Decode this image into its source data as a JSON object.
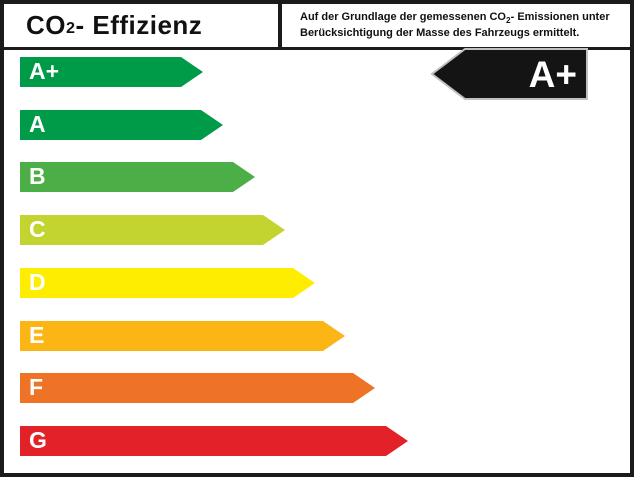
{
  "header": {
    "title": {
      "prefix": "CO",
      "sub": "2",
      "suffix": " - Effizienz"
    },
    "note": {
      "line1": {
        "prefix": "Auf der Grundlage der gemessenen CO",
        "sub": "2",
        "suffix": "- Emissionen unter"
      },
      "line2": "Berücksichtigung der Masse des Fahrzeugs ermittelt."
    }
  },
  "chart_data": {
    "type": "bar",
    "title": "CO2 - Effizienz",
    "orientation": "horizontal-arrows",
    "categories": [
      "A+",
      "A",
      "B",
      "C",
      "D",
      "E",
      "F",
      "G"
    ],
    "values": [
      161,
      181,
      213,
      243,
      273,
      303,
      333,
      366
    ],
    "values_note": "arrow body length in px, tip adds 22px; arrows grow from best (A+) to worst (G)",
    "classes": [
      {
        "label": "A+",
        "color": "#009b48",
        "length": 161
      },
      {
        "label": "A",
        "color": "#009b48",
        "length": 181
      },
      {
        "label": "B",
        "color": "#4cae47",
        "length": 213
      },
      {
        "label": "C",
        "color": "#c3d431",
        "length": 243
      },
      {
        "label": "D",
        "color": "#ffed00",
        "length": 273
      },
      {
        "label": "E",
        "color": "#fbb616",
        "length": 303
      },
      {
        "label": "F",
        "color": "#ee7326",
        "length": 333
      },
      {
        "label": "G",
        "color": "#e32129",
        "length": 366
      }
    ],
    "rating": "A+",
    "rating_arrow": {
      "fill": "#141414",
      "outline": "#c0c0c0",
      "text_color": "#ffffff"
    },
    "legend": "none",
    "grid": false
  }
}
